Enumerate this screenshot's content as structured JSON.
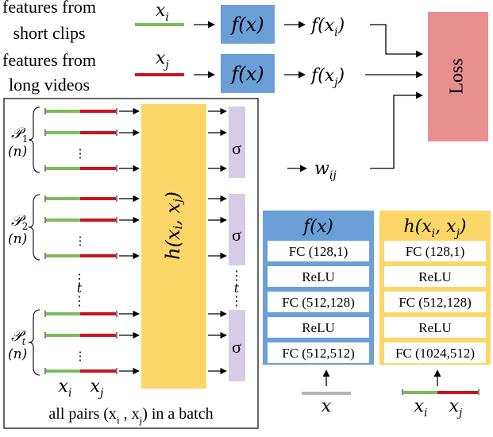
{
  "inputs": {
    "short": {
      "label_line1": "features from",
      "label_line2": "short clips",
      "var": "x",
      "sub": "i",
      "out_fn": "f(x",
      "out_sub": "i",
      "close": ")"
    },
    "long": {
      "label_line1": "features from",
      "label_line2": "long videos",
      "var": "x",
      "sub": "j",
      "out_fn": "f(x",
      "out_sub": "j",
      "close": ")"
    }
  },
  "f_box_label": "f(x)",
  "loss_label": "Loss",
  "weight": {
    "var": "w",
    "sub": "ij"
  },
  "batch": {
    "groups": [
      {
        "name": "P",
        "sub": "1",
        "n": "(n)"
      },
      {
        "name": "P",
        "sub": "2",
        "n": "(n)"
      },
      {
        "name": "P",
        "sub": "t",
        "n": "(n)"
      }
    ],
    "h_label": {
      "fn": "h",
      "open": "(x",
      "sub1": "i",
      "comma": ", x",
      "sub2": "j",
      "close": ")"
    },
    "sigma": "σ",
    "gap_label": "t",
    "x_i": {
      "var": "x",
      "sub": "i"
    },
    "x_j": {
      "var": "x",
      "sub": "j"
    },
    "caption": {
      "prefix": "all pairs (x",
      "sub1": "i",
      "mid": " , x",
      "sub2": "j",
      "suffix": ") in a batch"
    }
  },
  "f_arch": {
    "title": "f(x)",
    "layers": [
      "FC (128,1)",
      "ReLU",
      "FC (512,128)",
      "ReLU",
      "FC (512,512)"
    ],
    "input": "x",
    "color": "#6a9fd8"
  },
  "h_arch": {
    "title": {
      "fn": "h",
      "open": "(x",
      "sub1": "i",
      "comma": ", x",
      "sub2": "j",
      "close": ")"
    },
    "layers": [
      "FC (128,1)",
      "ReLU",
      "FC (512,128)",
      "ReLU",
      "FC (1024,512)"
    ],
    "input": {
      "var": "x",
      "sub1": "i",
      "sub2": "j"
    },
    "color": "#fcd668"
  },
  "colors": {
    "green": "#7dba5a",
    "red": "#c8141e",
    "blue": "#6a9fd8",
    "yellow": "#fcd668",
    "pink": "#e89090",
    "lavender": "#d5cde6",
    "grey": "#b4b4b4"
  }
}
